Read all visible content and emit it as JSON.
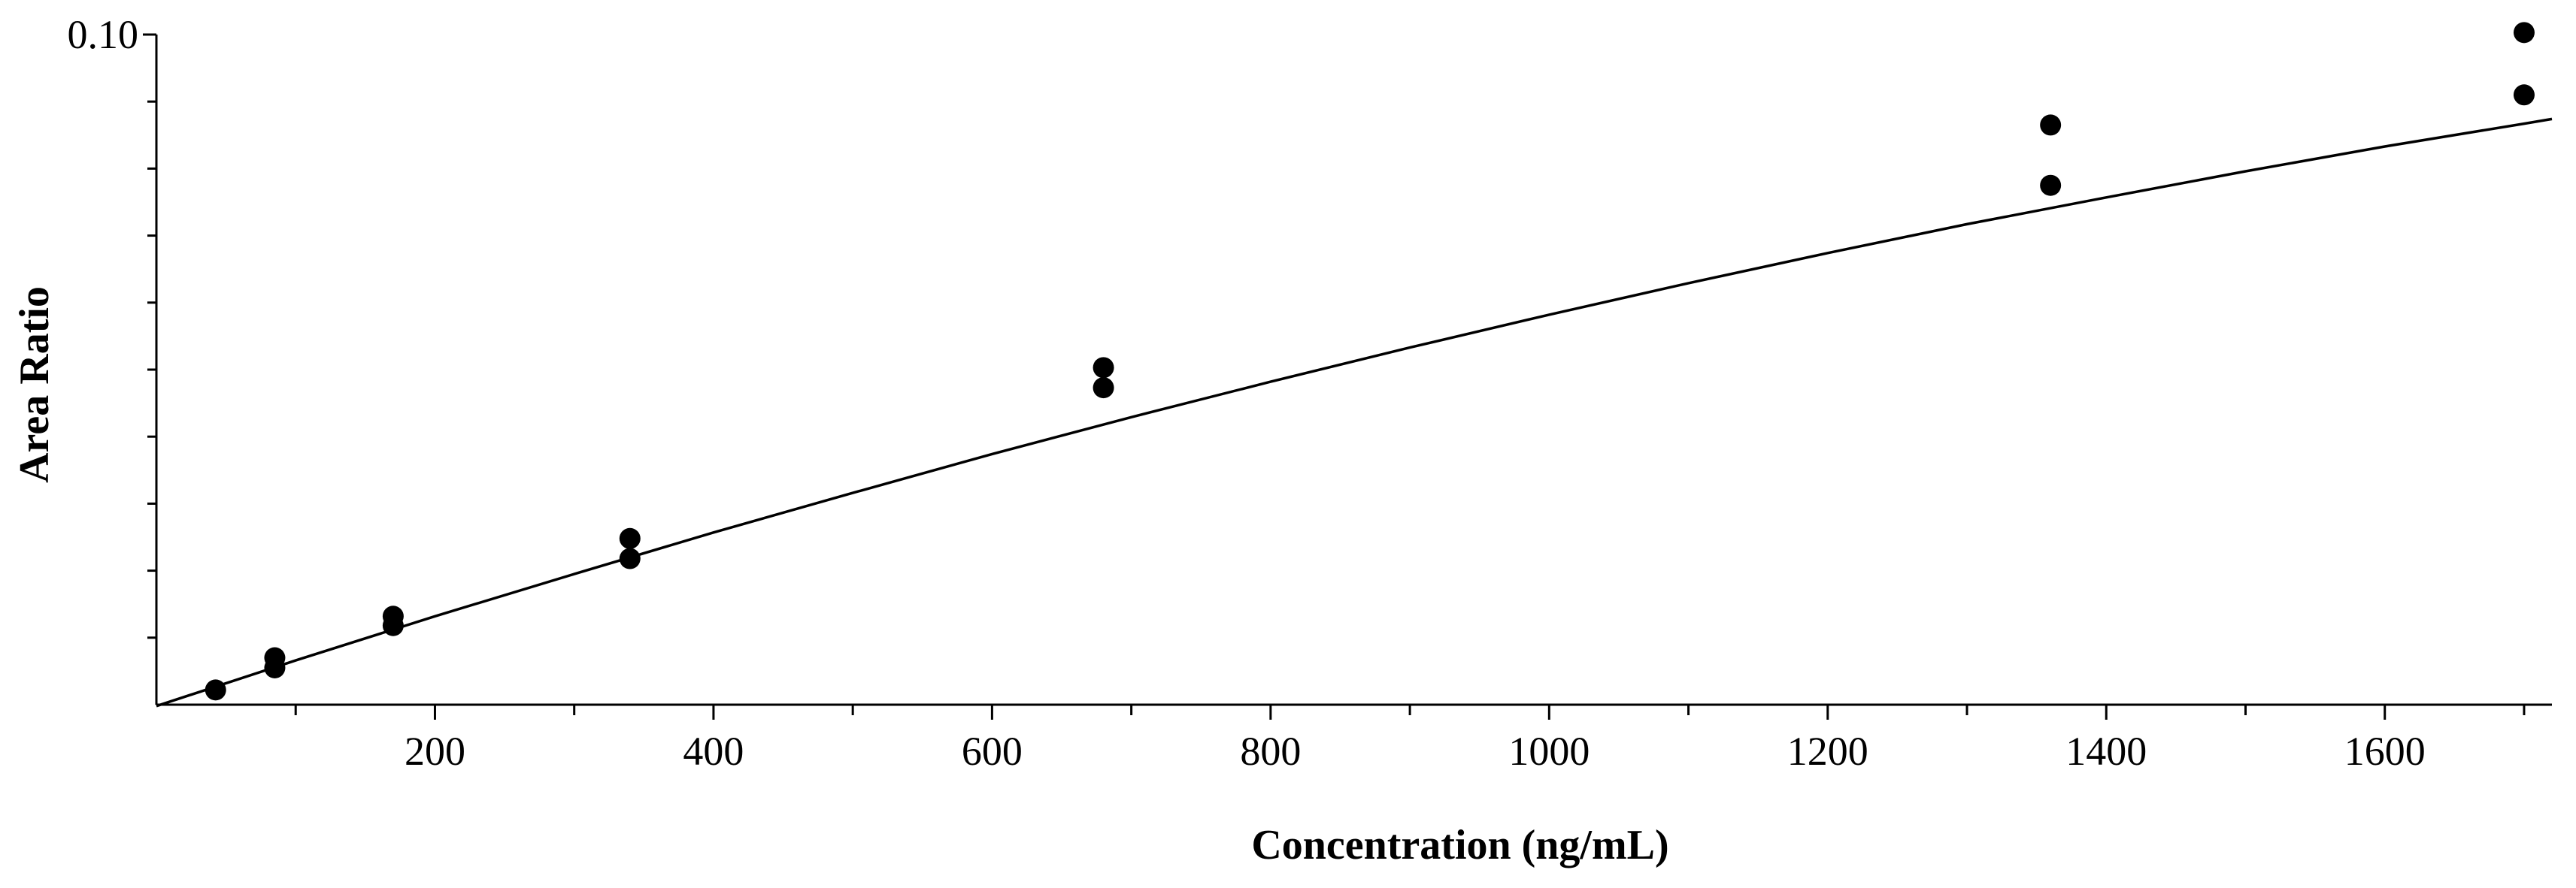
{
  "chart_data": {
    "type": "scatter",
    "title": "",
    "xlabel": "Concentration (ng/mL)",
    "ylabel": "Area Ratio",
    "xlim": [
      0,
      1720
    ],
    "ylim": [
      0,
      0.1
    ],
    "x_ticks": [
      200,
      400,
      600,
      800,
      1000,
      1200,
      1400,
      1600
    ],
    "y_tick_labels": [
      {
        "value": 0.1,
        "label": "0.10"
      }
    ],
    "grid": false,
    "legend": "none",
    "series": [
      {
        "points": [
          {
            "x": 42.5,
            "y": 0.0022
          },
          {
            "x": 85,
            "y": 0.0055
          },
          {
            "x": 85,
            "y": 0.007
          },
          {
            "x": 170,
            "y": 0.0118
          },
          {
            "x": 170,
            "y": 0.0132
          },
          {
            "x": 340,
            "y": 0.0218
          },
          {
            "x": 340,
            "y": 0.0248
          },
          {
            "x": 680,
            "y": 0.0473
          },
          {
            "x": 680,
            "y": 0.0503
          },
          {
            "x": 1360,
            "y": 0.0775
          },
          {
            "x": 1360,
            "y": 0.0865
          },
          {
            "x": 1700,
            "y": 0.091
          },
          {
            "x": 1700,
            "y": 0.1003
          }
        ]
      }
    ],
    "fit_curve": {
      "x": [
        0,
        100,
        200,
        300,
        400,
        500,
        600,
        700,
        800,
        900,
        1000,
        1100,
        1200,
        1300,
        1400,
        1500,
        1600,
        1700,
        1720
      ],
      "y": [
        -0.0002,
        0.0066,
        0.0132,
        0.0195,
        0.0257,
        0.0316,
        0.0374,
        0.0429,
        0.0482,
        0.0533,
        0.0582,
        0.0629,
        0.0674,
        0.0717,
        0.0757,
        0.0796,
        0.0833,
        0.0867,
        0.0874
      ]
    }
  }
}
